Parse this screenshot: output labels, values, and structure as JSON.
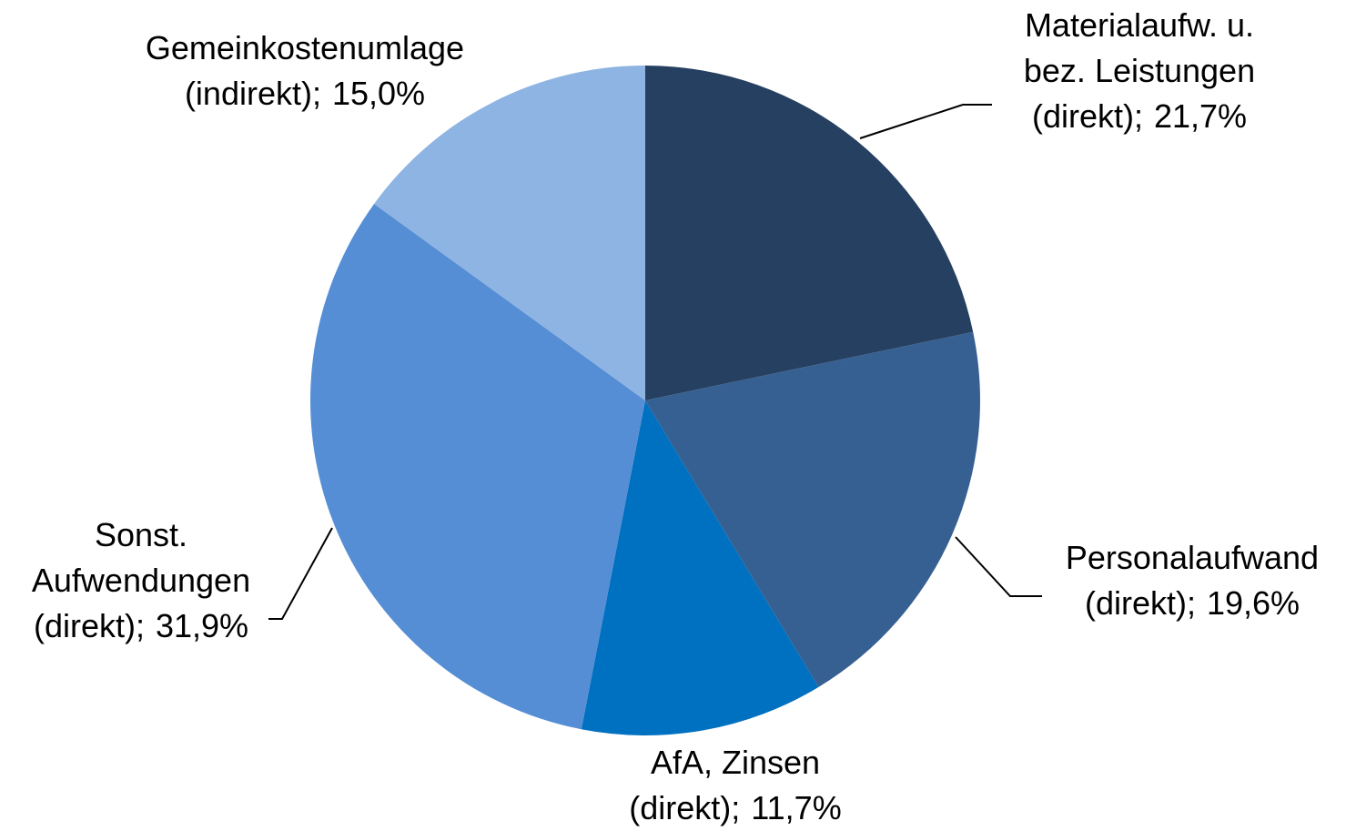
{
  "chart_data": {
    "type": "pie",
    "categories": [
      [
        "Materialaufw.  u.",
        "bez. Leistungen",
        "(direkt);"
      ],
      [
        "Personalaufwand",
        "(direkt);"
      ],
      [
        "AfA, Zinsen",
        "(direkt);"
      ],
      [
        "Sonst.",
        "Aufwendungen",
        "(direkt);"
      ],
      [
        "Gemeinkostenumlage",
        "(indirekt);"
      ]
    ],
    "values": [
      21.7,
      19.6,
      11.7,
      31.9,
      15.0
    ],
    "value_labels": [
      "21,7%",
      "19,6%",
      "11,7%",
      "31,9%",
      "15,0%"
    ],
    "colors": [
      "#264061",
      "#376092",
      "#0070c0",
      "#558ed5",
      "#8eb4e3"
    ]
  }
}
